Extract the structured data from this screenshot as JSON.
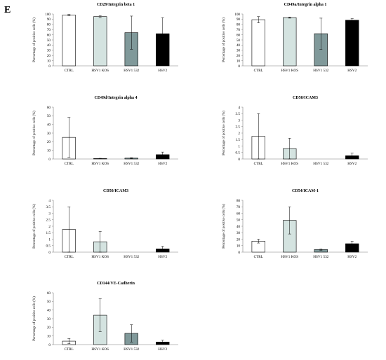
{
  "panel_label": "E",
  "colors": {
    "CTRL": "#ffffff",
    "HSV1 KOS": "#d4e3e0",
    "HSV1 532": "#80999a",
    "HSV2": "#000000"
  },
  "chart_data": [
    {
      "type": "bar",
      "title": "CD29/Integrin beta 1",
      "ylabel": "Percentage of positive cells (%)",
      "categories": [
        "CTRL",
        "HSV1 KOS",
        "HSV1 532",
        "HSV2"
      ],
      "values": [
        98,
        95,
        64,
        62
      ],
      "errors": [
        1,
        2,
        32,
        31
      ],
      "ylim": [
        0,
        100
      ],
      "yticks": [
        "0",
        "10",
        "20",
        "30",
        "40",
        "50",
        "60",
        "70",
        "80",
        "90",
        "100"
      ]
    },
    {
      "type": "bar",
      "title": "CD49a/Integrin alpha 1",
      "ylabel": "Percentage of positive cells (%)",
      "categories": [
        "CTRL",
        "HSV1 KOS",
        "HSV1 532",
        "HSV2"
      ],
      "values": [
        89,
        93,
        62,
        88
      ],
      "errors": [
        6,
        1,
        30,
        3
      ],
      "ylim": [
        0,
        100
      ],
      "yticks": [
        "0",
        "10",
        "20",
        "30",
        "40",
        "50",
        "60",
        "70",
        "80",
        "90",
        "100"
      ]
    },
    {
      "type": "bar",
      "title": "CD49d/Integrin alpha 4",
      "ylabel": "Percentage of positive cells (%)",
      "categories": [
        "CTRL",
        "HSV1 KOS",
        "HSV1 532",
        "HSV2"
      ],
      "values": [
        25,
        0.5,
        1,
        5
      ],
      "errors": [
        23,
        0.3,
        0.5,
        3
      ],
      "ylim": [
        0,
        60
      ],
      "yticks": [
        "0",
        "10",
        "20",
        "30",
        "40",
        "50",
        "60"
      ]
    },
    {
      "type": "bar",
      "title": "CD50/ICAM3",
      "ylabel": "Percentage of positive cells (%)",
      "categories": [
        "CTRL",
        "HSV1 KOS",
        "HSV1 532",
        "HSV2"
      ],
      "values": [
        1.75,
        0.8,
        0,
        0.25
      ],
      "errors": [
        1.75,
        0.8,
        0,
        0.2
      ],
      "ylim": [
        0,
        4
      ],
      "yticks": [
        "0",
        "0.5",
        "1",
        "1.5",
        "2",
        "2.5",
        "3",
        "3.5",
        "4"
      ]
    },
    {
      "type": "bar",
      "title": "CD50/ICAM3",
      "ylabel": "Percentage of positive cells (%)",
      "categories": [
        "CTRL",
        "HSV1 KOS",
        "HSV1 532",
        "HSV2"
      ],
      "values": [
        1.75,
        0.8,
        0,
        0.25
      ],
      "errors": [
        1.75,
        0.8,
        0,
        0.2
      ],
      "ylim": [
        0,
        4
      ],
      "yticks": [
        "0",
        "0.5",
        "1",
        "1.5",
        "2",
        "2.5",
        "3",
        "3.5",
        "4"
      ]
    },
    {
      "type": "bar",
      "title": "CD54/ICAM-1",
      "ylabel": "Percentage of positive cells (%)",
      "categories": [
        "CTRL",
        "HSV1 KOS",
        "HSV1 532",
        "HSV2"
      ],
      "values": [
        17,
        49,
        4,
        13
      ],
      "errors": [
        3,
        21,
        1,
        4
      ],
      "ylim": [
        0,
        80
      ],
      "yticks": [
        "0",
        "10",
        "20",
        "30",
        "40",
        "50",
        "60",
        "70",
        "80"
      ]
    },
    {
      "type": "bar",
      "title": "CD144/VE-Cadherin",
      "ylabel": "Percentage of positive cells (%)",
      "categories": [
        "CTRL",
        "HSV1 KOS",
        "HSV1 532",
        "HSV2"
      ],
      "values": [
        4,
        34,
        13,
        3
      ],
      "errors": [
        3,
        19,
        10,
        2
      ],
      "ylim": [
        0,
        60
      ],
      "yticks": [
        "0",
        "10",
        "20",
        "30",
        "40",
        "50",
        "60"
      ]
    }
  ]
}
